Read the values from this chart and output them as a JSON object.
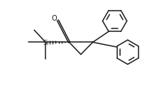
{
  "bg_color": "#ffffff",
  "line_color": "#1a1a1a",
  "line_width": 1.1,
  "figsize": [
    2.14,
    1.21
  ],
  "dpi": 100,
  "xlim": [
    0,
    10
  ],
  "ylim": [
    0,
    5.6
  ]
}
